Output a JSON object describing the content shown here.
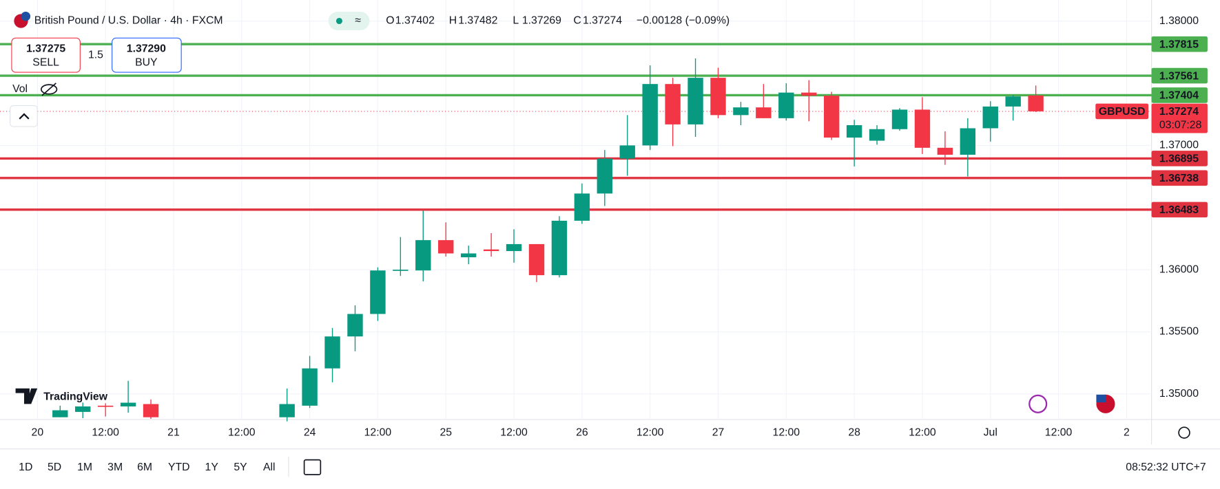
{
  "header": {
    "title": "British Pound / U.S. Dollar · 4h · FXCM",
    "ohlc": [
      {
        "label": "O",
        "value": "1.37402"
      },
      {
        "label": "H",
        "value": "1.37482"
      },
      {
        "label": "L",
        "value": "1.37269"
      },
      {
        "label": "C",
        "value": "1.37274"
      }
    ],
    "change": "−0.00128 (−0.09%)"
  },
  "trade": {
    "sell_price": "1.37275",
    "sell": "SELL",
    "spread": "1.5",
    "buy_price": "1.37290",
    "buy": "BUY"
  },
  "volume_label": "Vol",
  "watermark": "TradingView",
  "toolbar": {
    "ranges": [
      "1D",
      "5D",
      "1M",
      "3M",
      "6M",
      "YTD",
      "1Y",
      "5Y",
      "All"
    ],
    "clock": "08:52:32 UTC+7"
  },
  "chart_data": {
    "type": "candlestick",
    "up_color": "#089981",
    "down_color": "#f23645",
    "x": [
      1,
      2,
      3,
      4,
      5,
      11,
      12,
      13,
      14,
      15,
      16,
      17,
      18,
      19,
      20,
      21,
      22,
      23,
      24,
      25,
      26,
      27,
      28,
      29,
      30,
      31,
      32,
      33,
      34,
      35,
      36,
      37,
      38,
      39,
      40,
      41,
      42,
      43,
      44
    ],
    "open": [
      1.34813,
      1.34856,
      1.34906,
      1.349,
      1.34919,
      1.34813,
      1.34906,
      1.35206,
      1.35463,
      1.35644,
      1.35994,
      1.35994,
      1.36238,
      1.361,
      1.36163,
      1.3615,
      1.36206,
      1.35956,
      1.36394,
      1.36613,
      1.36894,
      1.37,
      1.37494,
      1.37169,
      1.37544,
      1.37244,
      1.37306,
      1.37219,
      1.37425,
      1.374,
      1.37063,
      1.37038,
      1.37131,
      1.37288,
      1.36981,
      1.36925,
      1.37138,
      1.37313,
      1.37402
    ],
    "high": [
      1.34906,
      1.34931,
      1.34925,
      1.35106,
      1.34956,
      1.35044,
      1.35306,
      1.35531,
      1.35713,
      1.36019,
      1.36263,
      1.36475,
      1.36381,
      1.36194,
      1.36294,
      1.36325,
      1.36206,
      1.36431,
      1.36694,
      1.36963,
      1.37244,
      1.37644,
      1.37544,
      1.377,
      1.37625,
      1.3735,
      1.37494,
      1.375,
      1.37525,
      1.37431,
      1.37206,
      1.37163,
      1.373,
      1.37388,
      1.37113,
      1.37219,
      1.37356,
      1.37406,
      1.37482
    ],
    "low": [
      1.34813,
      1.34806,
      1.34819,
      1.3485,
      1.348,
      1.3478,
      1.34888,
      1.35094,
      1.35344,
      1.35588,
      1.3595,
      1.35906,
      1.36106,
      1.36044,
      1.36106,
      1.36056,
      1.359,
      1.35938,
      1.36369,
      1.36513,
      1.36756,
      1.36963,
      1.36994,
      1.37069,
      1.37219,
      1.37163,
      1.37219,
      1.372,
      1.37194,
      1.37044,
      1.36831,
      1.37006,
      1.37119,
      1.36931,
      1.36844,
      1.3675,
      1.37031,
      1.372,
      1.37269
    ],
    "close": [
      1.34869,
      1.349,
      1.349,
      1.3493,
      1.34813,
      1.34919,
      1.35206,
      1.35463,
      1.35644,
      1.35994,
      1.36,
      1.36238,
      1.36131,
      1.36131,
      1.3615,
      1.36206,
      1.35956,
      1.36394,
      1.36613,
      1.36894,
      1.37,
      1.37494,
      1.37169,
      1.37544,
      1.37244,
      1.37306,
      1.37219,
      1.37425,
      1.374,
      1.37063,
      1.37163,
      1.37131,
      1.37288,
      1.36981,
      1.36925,
      1.37138,
      1.37313,
      1.37394,
      1.37274
    ],
    "xlim": [
      -1.65,
      49.1
    ],
    "ylim": [
      1.34795,
      1.3817
    ],
    "xticks": [
      {
        "value": 0,
        "label": "20"
      },
      {
        "value": 3,
        "label": "12:00"
      },
      {
        "value": 6,
        "label": "21"
      },
      {
        "value": 9,
        "label": "12:00"
      },
      {
        "value": 12,
        "label": "24"
      },
      {
        "value": 15,
        "label": "12:00"
      },
      {
        "value": 18,
        "label": "25"
      },
      {
        "value": 21,
        "label": "12:00"
      },
      {
        "value": 24,
        "label": "26"
      },
      {
        "value": 27,
        "label": "12:00"
      },
      {
        "value": 30,
        "label": "27"
      },
      {
        "value": 33,
        "label": "12:00"
      },
      {
        "value": 36,
        "label": "28"
      },
      {
        "value": 39,
        "label": "12:00"
      },
      {
        "value": 42,
        "label": "Jul"
      },
      {
        "value": 45,
        "label": "12:00"
      },
      {
        "value": 48,
        "label": "2"
      }
    ],
    "yticks": [
      {
        "value": 1.38,
        "label": "1.38000"
      },
      {
        "value": 1.37,
        "label": "1.37000"
      },
      {
        "value": 1.36,
        "label": "1.36000"
      },
      {
        "value": 1.355,
        "label": "1.35500"
      },
      {
        "value": 1.35,
        "label": "1.35000"
      }
    ],
    "grid": true,
    "levels": [
      {
        "value": 1.37815,
        "color": "#4caf50"
      },
      {
        "value": 1.37561,
        "color": "#4caf50"
      },
      {
        "value": 1.37404,
        "color": "#4caf50"
      },
      {
        "value": 1.36895,
        "color": "#e0323f"
      },
      {
        "value": 1.36738,
        "color": "#e0323f"
      },
      {
        "value": 1.36483,
        "color": "#e0323f"
      }
    ],
    "last": {
      "symbol": "GBPUSD",
      "price": 1.37274,
      "countdown": "03:07:28",
      "color": "#f23645"
    }
  }
}
